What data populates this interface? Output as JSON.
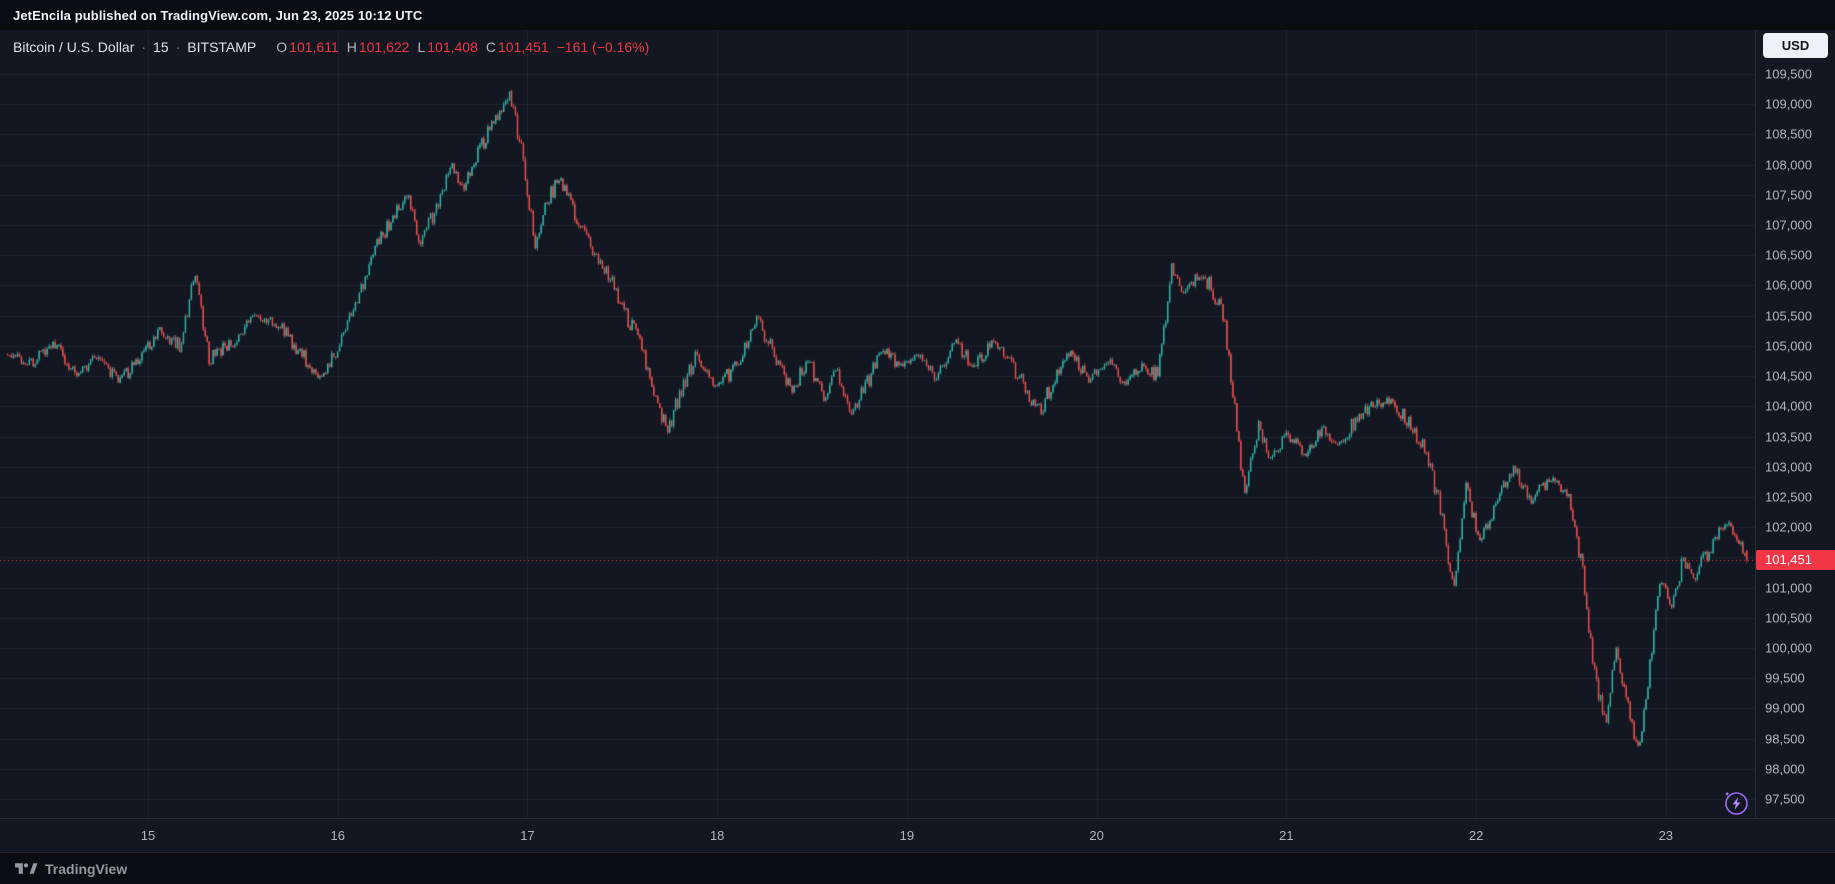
{
  "meta": {
    "publish_line": "JetEncila published on TradingView.com, Jun 23, 2025 10:12 UTC"
  },
  "header": {
    "symbol": "Bitcoin / U.S. Dollar",
    "separator": "·",
    "interval": "15",
    "exchange": "BITSTAMP",
    "ohlc": {
      "o_label": "O",
      "o": "101,611",
      "h_label": "H",
      "h": "101,622",
      "l_label": "L",
      "l": "101,408",
      "c_label": "C",
      "c": "101,451",
      "change": "−161 (−0.16%)"
    }
  },
  "currency_button": "USD",
  "last_price": {
    "value": 101451,
    "label": "101,451"
  },
  "footer": {
    "brand": "TradingView"
  },
  "colors": {
    "up": "#33b8ab",
    "down": "#ef5350",
    "last": "#f23645",
    "grid": "rgba(250,251,255,0.05)",
    "axis_text": "#b2b5be",
    "background": "#131722"
  },
  "chart_data": {
    "type": "candlestick",
    "title": "Bitcoin / U.S. Dollar · 15 · BITSTAMP",
    "interval_minutes": 15,
    "y_range": [
      97500,
      109500
    ],
    "y_tick_step": 500,
    "day_ticks": [
      15,
      16,
      17,
      18,
      19,
      20,
      21,
      22,
      23
    ],
    "t_start": 14.22,
    "t_end": 23.47,
    "t_first": 14.26,
    "t_last": 23.43,
    "noise": 55,
    "wick": 45,
    "last": {
      "open": 101611,
      "high": 101622,
      "low": 101408,
      "close": 101451
    },
    "anchors": [
      [
        14.23,
        104900
      ],
      [
        14.38,
        104700
      ],
      [
        14.5,
        105050
      ],
      [
        14.62,
        104550
      ],
      [
        14.74,
        104850
      ],
      [
        14.85,
        104400
      ],
      [
        14.96,
        104850
      ],
      [
        15.06,
        105250
      ],
      [
        15.17,
        105000
      ],
      [
        15.25,
        106250
      ],
      [
        15.32,
        104800
      ],
      [
        15.44,
        105050
      ],
      [
        15.58,
        105500
      ],
      [
        15.7,
        105300
      ],
      [
        15.8,
        104900
      ],
      [
        15.9,
        104450
      ],
      [
        16.0,
        104900
      ],
      [
        16.1,
        105700
      ],
      [
        16.2,
        106700
      ],
      [
        16.3,
        107150
      ],
      [
        16.37,
        107500
      ],
      [
        16.43,
        106650
      ],
      [
        16.52,
        107300
      ],
      [
        16.6,
        108000
      ],
      [
        16.66,
        107600
      ],
      [
        16.74,
        108200
      ],
      [
        16.82,
        108700
      ],
      [
        16.9,
        109150
      ],
      [
        16.97,
        108300
      ],
      [
        17.04,
        106700
      ],
      [
        17.1,
        107300
      ],
      [
        17.16,
        107800
      ],
      [
        17.24,
        107250
      ],
      [
        17.33,
        106700
      ],
      [
        17.42,
        106250
      ],
      [
        17.5,
        105600
      ],
      [
        17.58,
        105150
      ],
      [
        17.66,
        104300
      ],
      [
        17.74,
        103600
      ],
      [
        17.82,
        104350
      ],
      [
        17.89,
        104850
      ],
      [
        18.0,
        104300
      ],
      [
        18.1,
        104700
      ],
      [
        18.21,
        105450
      ],
      [
        18.3,
        104900
      ],
      [
        18.4,
        104250
      ],
      [
        18.48,
        104800
      ],
      [
        18.56,
        104100
      ],
      [
        18.63,
        104650
      ],
      [
        18.7,
        103850
      ],
      [
        18.8,
        104450
      ],
      [
        18.88,
        104950
      ],
      [
        18.96,
        104650
      ],
      [
        19.06,
        104900
      ],
      [
        19.15,
        104450
      ],
      [
        19.25,
        105100
      ],
      [
        19.35,
        104650
      ],
      [
        19.45,
        105050
      ],
      [
        19.55,
        104750
      ],
      [
        19.63,
        104250
      ],
      [
        19.71,
        103950
      ],
      [
        19.79,
        104600
      ],
      [
        19.87,
        104900
      ],
      [
        19.96,
        104450
      ],
      [
        20.06,
        104750
      ],
      [
        20.15,
        104400
      ],
      [
        20.24,
        104650
      ],
      [
        20.32,
        104500
      ],
      [
        20.4,
        106350
      ],
      [
        20.46,
        105850
      ],
      [
        20.53,
        106150
      ],
      [
        20.6,
        106000
      ],
      [
        20.67,
        105500
      ],
      [
        20.73,
        103900
      ],
      [
        20.78,
        102450
      ],
      [
        20.85,
        103650
      ],
      [
        20.92,
        103100
      ],
      [
        21.0,
        103550
      ],
      [
        21.1,
        103200
      ],
      [
        21.19,
        103650
      ],
      [
        21.28,
        103350
      ],
      [
        21.38,
        103850
      ],
      [
        21.48,
        104050
      ],
      [
        21.56,
        104100
      ],
      [
        21.65,
        103700
      ],
      [
        21.73,
        103250
      ],
      [
        21.8,
        102500
      ],
      [
        21.88,
        101050
      ],
      [
        21.95,
        102650
      ],
      [
        22.02,
        101750
      ],
      [
        22.1,
        102400
      ],
      [
        22.2,
        103000
      ],
      [
        22.29,
        102450
      ],
      [
        22.39,
        102800
      ],
      [
        22.49,
        102550
      ],
      [
        22.56,
        101300
      ],
      [
        22.62,
        99600
      ],
      [
        22.68,
        98750
      ],
      [
        22.74,
        100000
      ],
      [
        22.8,
        99050
      ],
      [
        22.86,
        98200
      ],
      [
        22.91,
        99550
      ],
      [
        22.97,
        101150
      ],
      [
        23.03,
        100700
      ],
      [
        23.09,
        101450
      ],
      [
        23.15,
        101150
      ],
      [
        23.22,
        101600
      ],
      [
        23.28,
        101950
      ],
      [
        23.33,
        102100
      ],
      [
        23.39,
        101750
      ],
      [
        23.43,
        101451
      ]
    ]
  }
}
